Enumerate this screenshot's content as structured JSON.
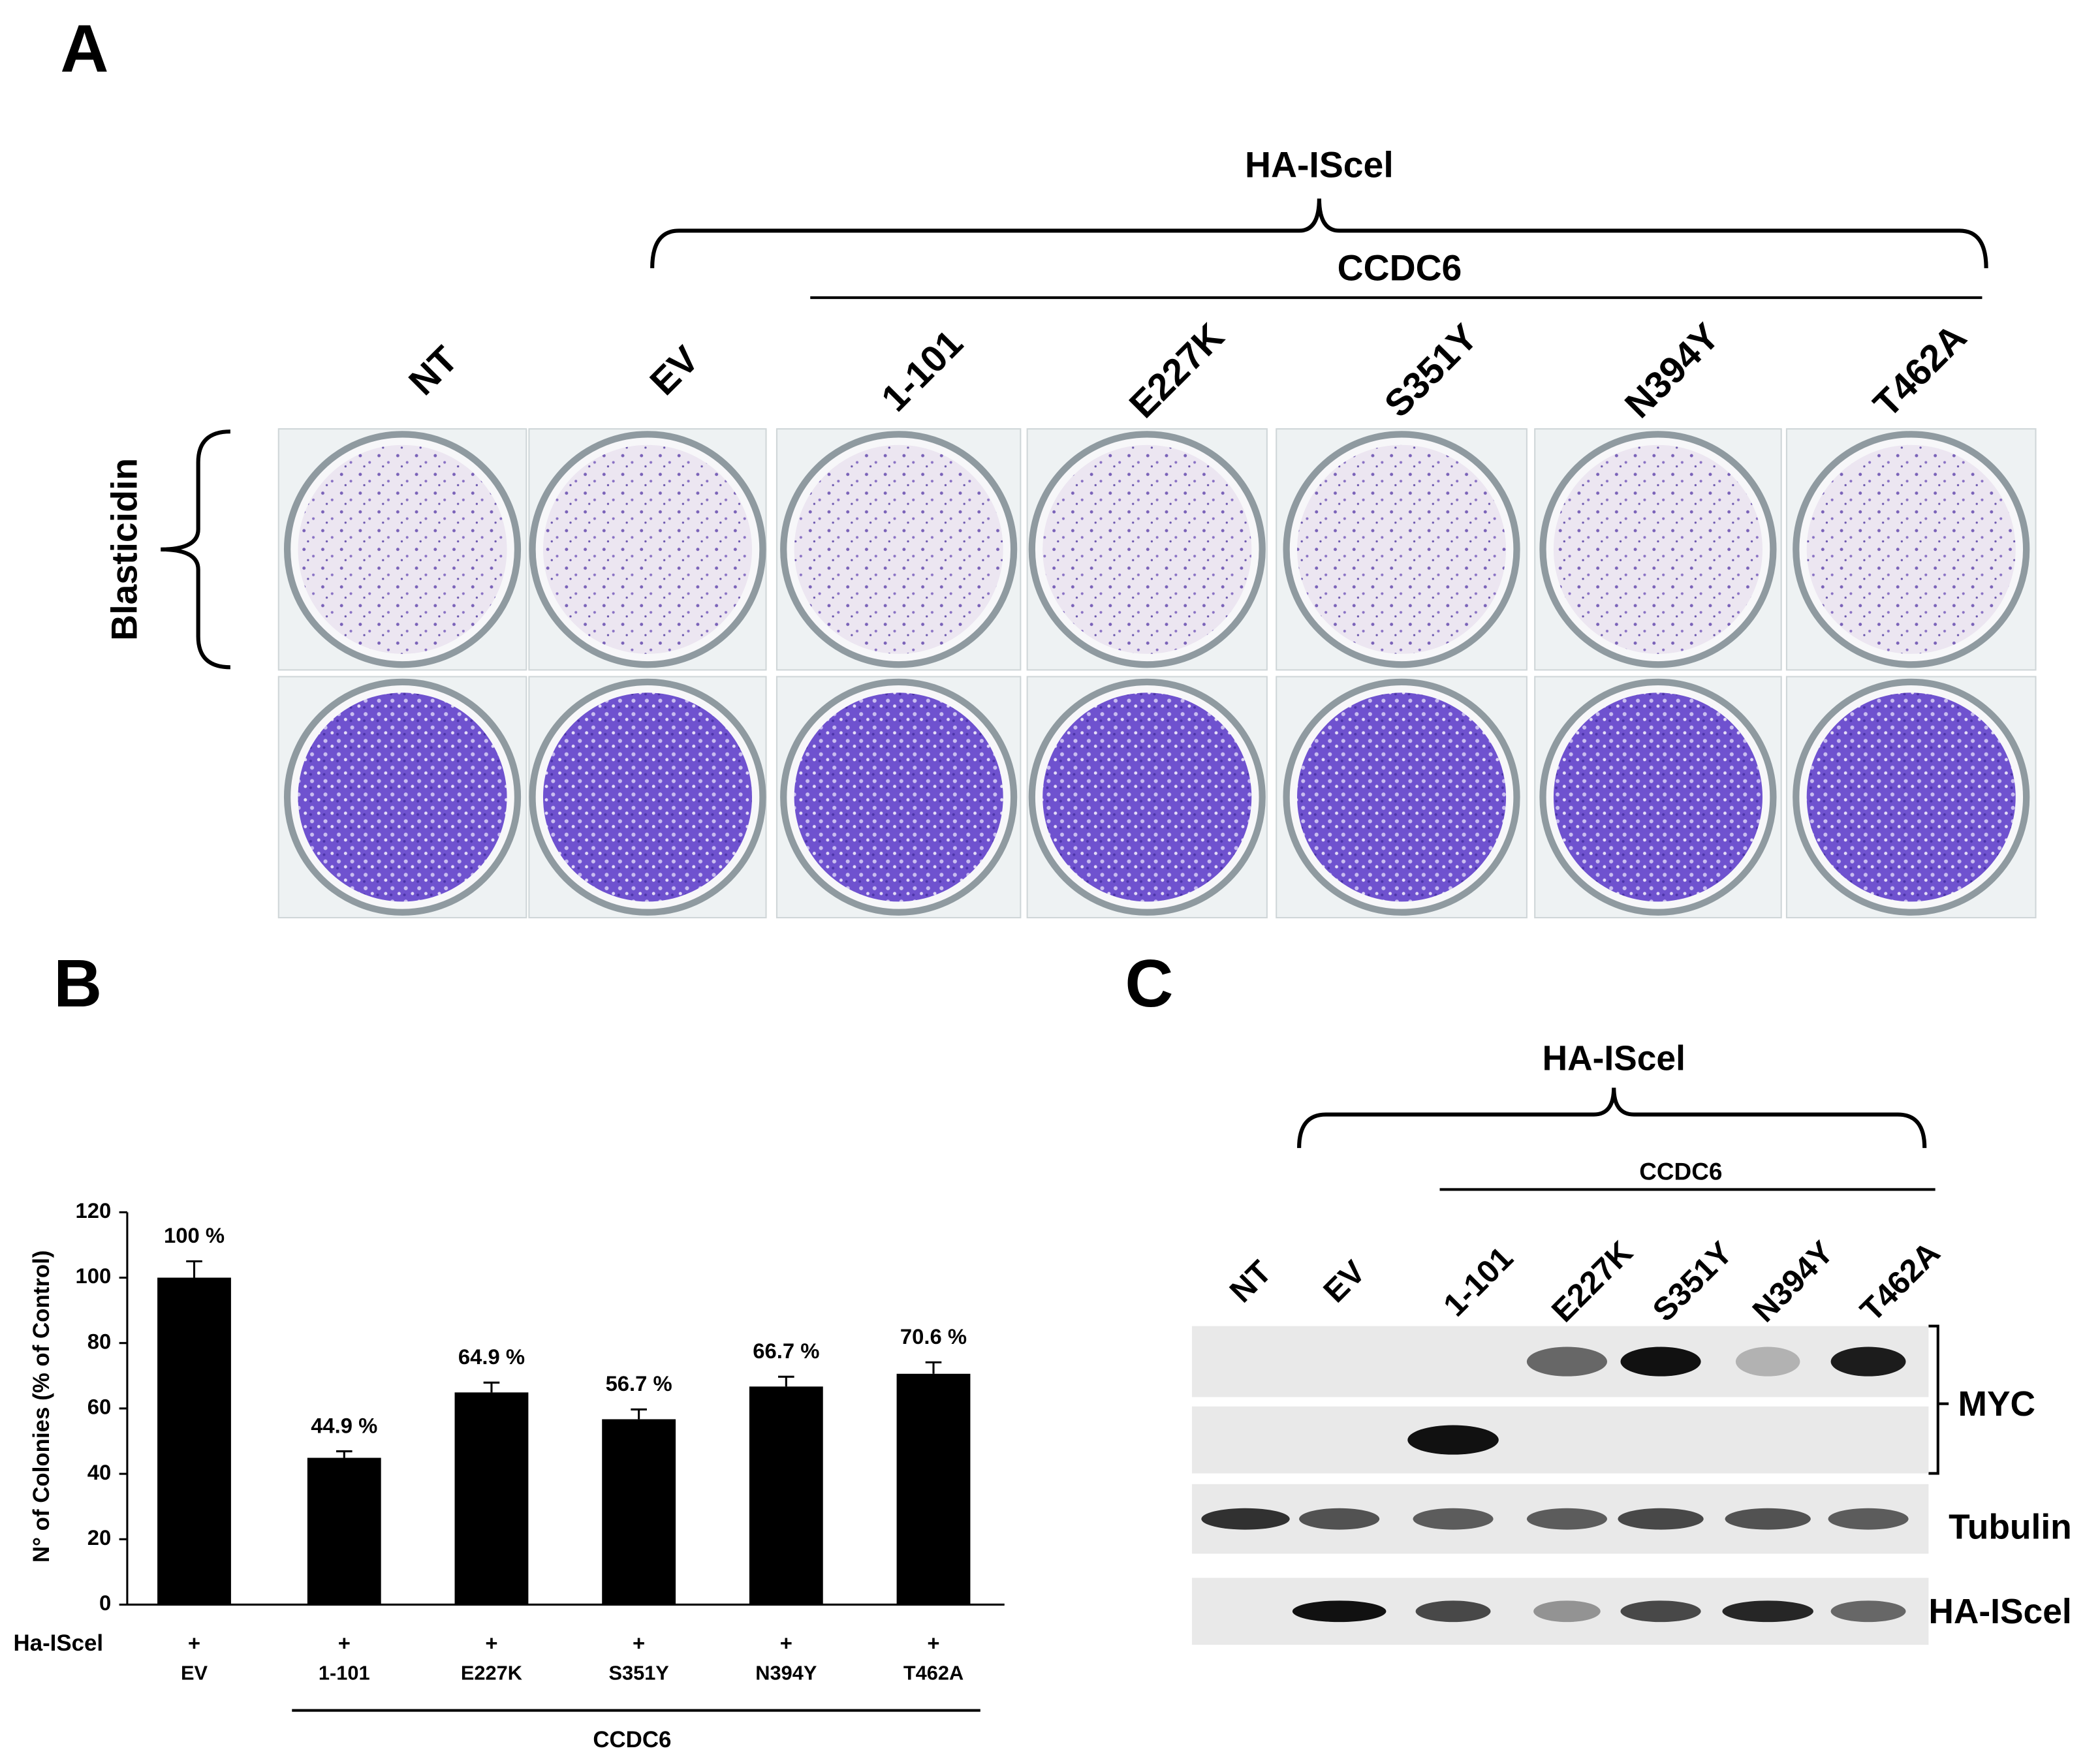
{
  "panel_a": {
    "label": "A",
    "group_label": "HA-IScel",
    "subgroup_label": "CCDC6",
    "columns": [
      "NT",
      "EV",
      "1-101",
      "E227K",
      "S351Y",
      "N394Y",
      "T462A"
    ],
    "row_label": "Blasticidin"
  },
  "chart_data": {
    "type": "bar",
    "panel_label": "B",
    "y_label": "N° of Colonies (% of Control)",
    "categories": [
      "EV",
      "1-101",
      "E227K",
      "S351Y",
      "N394Y",
      "T462A"
    ],
    "values": [
      100,
      44.9,
      64.9,
      56.7,
      66.7,
      70.6
    ],
    "value_labels": [
      "100 %",
      "44.9 %",
      "64.9 %",
      "56.7 %",
      "66.7 %",
      "70.6 %"
    ],
    "errors": [
      5,
      2,
      3,
      3,
      3,
      3.5
    ],
    "color": "#000000",
    "ylim": [
      0,
      120
    ],
    "yticks": [
      0,
      20,
      40,
      60,
      80,
      100,
      120
    ],
    "row_label": "Ha-IScel",
    "row_marks": [
      "+",
      "+",
      "+",
      "+",
      "+",
      "+"
    ],
    "group_label": "CCDC6"
  },
  "panel_c": {
    "label": "C",
    "group_label": "HA-IScel",
    "subgroup_label": "CCDC6",
    "lanes": [
      "NT",
      "EV",
      "1-101",
      "E227K",
      "S351Y",
      "N394Y",
      "T462A"
    ],
    "blot_labels": [
      "MYC",
      "Tubulin",
      "HA-IScel"
    ]
  }
}
